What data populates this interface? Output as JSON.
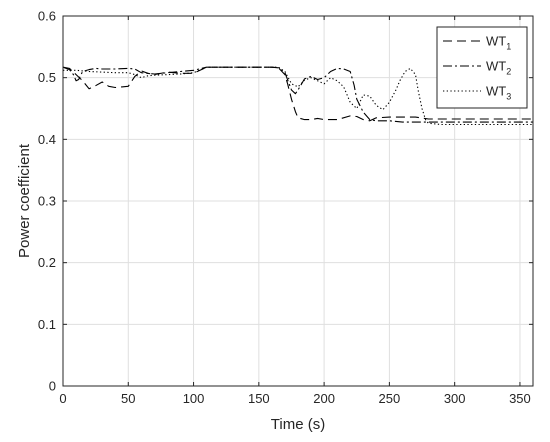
{
  "chart_data": {
    "type": "line",
    "title": "",
    "xlabel": "Time (s)",
    "ylabel": "Power coefficient",
    "xlim": [
      0,
      360
    ],
    "ylim": [
      0,
      0.6
    ],
    "xticks": [
      0,
      50,
      100,
      150,
      200,
      250,
      300,
      350
    ],
    "xtick_labels": [
      "0",
      "50",
      "100",
      "150",
      "200",
      "250",
      "300",
      "350"
    ],
    "yticks": [
      0,
      0.1,
      0.2,
      0.3,
      0.4,
      0.5,
      0.6
    ],
    "ytick_labels": [
      "0",
      "0.1",
      "0.2",
      "0.3",
      "0.4",
      "0.5",
      "0.6"
    ],
    "grid": true,
    "legend_position": "top-right",
    "series": [
      {
        "name": "WT",
        "subscript": "1",
        "style": "dashed",
        "color": "#000000",
        "x": [
          0,
          5,
          10,
          15,
          20,
          25,
          30,
          35,
          40,
          45,
          50,
          55,
          60,
          65,
          70,
          80,
          90,
          100,
          110,
          120,
          130,
          140,
          150,
          160,
          165,
          170,
          172,
          175,
          178,
          180,
          185,
          190,
          195,
          200,
          210,
          220,
          225,
          230,
          235,
          240,
          250,
          260,
          270,
          280,
          290,
          300,
          320,
          340,
          360
        ],
        "y": [
          0.517,
          0.515,
          0.505,
          0.495,
          0.482,
          0.487,
          0.493,
          0.486,
          0.484,
          0.485,
          0.486,
          0.502,
          0.511,
          0.507,
          0.505,
          0.509,
          0.507,
          0.507,
          0.517,
          0.517,
          0.517,
          0.517,
          0.517,
          0.517,
          0.516,
          0.505,
          0.49,
          0.465,
          0.445,
          0.435,
          0.432,
          0.432,
          0.434,
          0.432,
          0.432,
          0.438,
          0.437,
          0.432,
          0.43,
          0.435,
          0.436,
          0.436,
          0.436,
          0.433,
          0.433,
          0.433,
          0.433,
          0.433,
          0.433
        ]
      },
      {
        "name": "WT",
        "subscript": "2",
        "style": "dashdot",
        "color": "#000000",
        "x": [
          0,
          5,
          8,
          10,
          12,
          15,
          20,
          25,
          30,
          40,
          50,
          55,
          60,
          70,
          80,
          90,
          100,
          110,
          120,
          130,
          140,
          150,
          160,
          165,
          170,
          175,
          178,
          180,
          185,
          190,
          195,
          200,
          205,
          210,
          215,
          220,
          223,
          225,
          230,
          235,
          240,
          250,
          260,
          270,
          280,
          300,
          320,
          340,
          360
        ],
        "y": [
          0.517,
          0.513,
          0.505,
          0.495,
          0.497,
          0.51,
          0.513,
          0.515,
          0.514,
          0.514,
          0.515,
          0.514,
          0.508,
          0.506,
          0.508,
          0.51,
          0.512,
          0.517,
          0.517,
          0.517,
          0.517,
          0.517,
          0.517,
          0.516,
          0.508,
          0.48,
          0.474,
          0.48,
          0.498,
          0.502,
          0.497,
          0.5,
          0.51,
          0.515,
          0.514,
          0.51,
          0.488,
          0.465,
          0.444,
          0.432,
          0.43,
          0.43,
          0.428,
          0.428,
          0.428,
          0.428,
          0.428,
          0.428,
          0.428
        ]
      },
      {
        "name": "WT",
        "subscript": "3",
        "style": "dotted",
        "color": "#000000",
        "x": [
          0,
          10,
          20,
          30,
          40,
          50,
          55,
          60,
          65,
          70,
          80,
          90,
          100,
          110,
          120,
          130,
          140,
          150,
          160,
          165,
          170,
          175,
          180,
          185,
          190,
          195,
          200,
          205,
          210,
          215,
          220,
          225,
          230,
          235,
          240,
          245,
          250,
          255,
          258,
          262,
          266,
          270,
          272,
          275,
          278,
          280,
          290,
          300,
          320,
          340,
          360
        ],
        "y": [
          0.512,
          0.512,
          0.51,
          0.509,
          0.508,
          0.508,
          0.505,
          0.5,
          0.503,
          0.504,
          0.505,
          0.506,
          0.508,
          0.517,
          0.517,
          0.517,
          0.517,
          0.517,
          0.517,
          0.517,
          0.51,
          0.49,
          0.485,
          0.496,
          0.5,
          0.495,
          0.49,
          0.5,
          0.495,
          0.485,
          0.46,
          0.45,
          0.472,
          0.47,
          0.455,
          0.448,
          0.46,
          0.48,
          0.495,
          0.51,
          0.515,
          0.505,
          0.48,
          0.45,
          0.43,
          0.426,
          0.424,
          0.424,
          0.424,
          0.424,
          0.424
        ]
      }
    ]
  }
}
